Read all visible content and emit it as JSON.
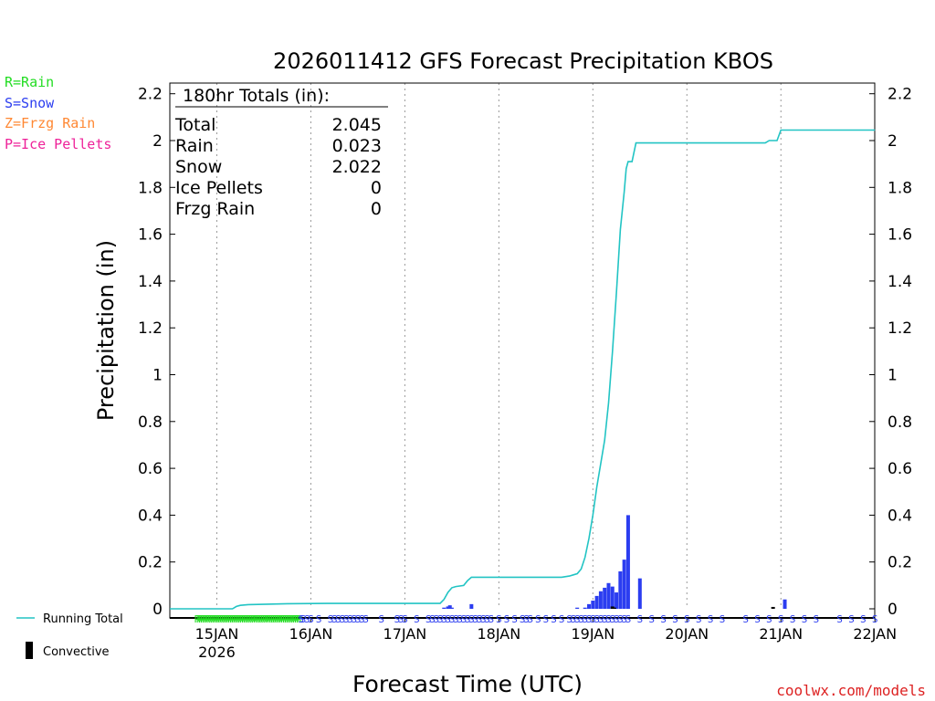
{
  "chart_data": {
    "type": "bar",
    "title": "2026011412 GFS Forecast Precipitation KBOS",
    "xlabel": "Forecast Time (UTC)",
    "ylabel": "Precipitation (in)",
    "ylim": [
      0,
      2.25
    ],
    "y_ticks": [
      0,
      0.2,
      0.4,
      0.6,
      0.8,
      1,
      1.2,
      1.4,
      1.6,
      1.8,
      2,
      2.2
    ],
    "y_tick_labels": [
      "0",
      "0.2",
      "0.4",
      "0.6",
      "0.8",
      "1",
      "1.2",
      "1.4",
      "1.6",
      "1.8",
      "2",
      "2.2"
    ],
    "x_unit": "forecast hour",
    "xlim": [
      0,
      180
    ],
    "x_ticks": [
      12,
      36,
      60,
      84,
      108,
      132,
      156,
      180
    ],
    "x_tick_labels": [
      "15JAN",
      "16JAN",
      "17JAN",
      "18JAN",
      "19JAN",
      "20JAN",
      "21JAN",
      "22JAN"
    ],
    "x_tick_sublabels": [
      "2026",
      "",
      "",
      "",
      "",
      "",
      "",
      ""
    ],
    "watermark": "coolwx.com/models",
    "legend_ptype": [
      {
        "code": "R",
        "label": "R=Rain",
        "color": "#22dd22"
      },
      {
        "code": "S",
        "label": "S=Snow",
        "color": "#2b3df0"
      },
      {
        "code": "Z",
        "label": "Z=Frzg Rain",
        "color": "#ff8833"
      },
      {
        "code": "P",
        "label": "P=Ice Pellets",
        "color": "#ee2299"
      }
    ],
    "legend_series": [
      {
        "label": "Running Total",
        "color": "#22c4c4"
      },
      {
        "label": "Convective",
        "color": "#000000"
      }
    ],
    "totals": {
      "header": "180hr Totals (in):",
      "rows": [
        {
          "label": "Total",
          "value": "2.045"
        },
        {
          "label": "Rain",
          "value": "0.023"
        },
        {
          "label": "Snow",
          "value": "2.022"
        },
        {
          "label": "Ice Pellets",
          "value": "0"
        },
        {
          "label": "Frzg Rain",
          "value": "0"
        }
      ]
    },
    "series": [
      {
        "name": "Precipitation (snow)",
        "type": "bar",
        "color": "#2b3df0",
        "x": [
          70,
          71,
          71.5,
          72,
          77,
          104,
          106,
          107,
          108,
          109,
          110,
          111,
          112,
          113,
          114,
          115,
          116,
          117,
          120,
          157
        ],
        "values": [
          0.005,
          0.01,
          0.015,
          0.005,
          0.02,
          0.005,
          0.005,
          0.02,
          0.035,
          0.055,
          0.075,
          0.09,
          0.11,
          0.095,
          0.07,
          0.16,
          0.21,
          0.4,
          0.13,
          0.04
        ]
      },
      {
        "name": "Convective",
        "type": "bar",
        "color": "#000000",
        "x": [
          113,
          113.5,
          154
        ],
        "values": [
          0.01,
          0.005,
          0.008
        ]
      },
      {
        "name": "Running Total",
        "type": "line",
        "color": "#22c4c4",
        "x": [
          0,
          16,
          17,
          18,
          20,
          25,
          30,
          40,
          60,
          69,
          70,
          71,
          72,
          73,
          75,
          76,
          77,
          80,
          90,
          100,
          102,
          103,
          104,
          105,
          106,
          107,
          108,
          109,
          110,
          111,
          112,
          113,
          114,
          115,
          116,
          116.5,
          117,
          117.5,
          118,
          119,
          120,
          130,
          140,
          152,
          153,
          155,
          156,
          157,
          180
        ],
        "values": [
          0,
          0,
          0.01,
          0.015,
          0.018,
          0.02,
          0.022,
          0.023,
          0.023,
          0.023,
          0.04,
          0.07,
          0.09,
          0.095,
          0.1,
          0.12,
          0.135,
          0.135,
          0.135,
          0.135,
          0.14,
          0.145,
          0.15,
          0.17,
          0.22,
          0.3,
          0.4,
          0.52,
          0.62,
          0.72,
          0.88,
          1.1,
          1.35,
          1.62,
          1.78,
          1.88,
          1.91,
          1.91,
          1.91,
          1.99,
          1.99,
          1.99,
          1.99,
          1.99,
          2.0,
          2.0,
          2.045,
          2.045,
          2.045
        ]
      }
    ],
    "ptype_strip": {
      "rain_glyph": "R",
      "snow_glyph": "S",
      "rain_hours": [
        7,
        7.5,
        8,
        8.5,
        9,
        9.5,
        10,
        10.5,
        11,
        11.5,
        12,
        12.5,
        13,
        13.5,
        14,
        14.5,
        15,
        15.5,
        16,
        16.5,
        17,
        17.5,
        18,
        18.5,
        19,
        19.5,
        20,
        20.5,
        21,
        21.5,
        22,
        22.5,
        23,
        23.5,
        24,
        24.5,
        25,
        25.5,
        26,
        26.5,
        27,
        27.5,
        28,
        28.5,
        29,
        29.5,
        30,
        30.5,
        31,
        31.5,
        32,
        32.5,
        33
      ],
      "snow_hours": [
        33.5,
        34,
        35,
        36,
        38,
        41,
        42,
        43,
        44,
        45,
        46,
        47,
        48,
        49,
        50,
        54,
        58,
        59,
        60,
        63,
        66,
        67,
        68,
        69,
        70,
        71,
        72,
        73,
        74,
        75,
        76,
        77,
        78,
        79,
        80,
        81,
        82,
        84,
        86,
        88,
        90,
        91,
        92,
        94,
        96,
        98,
        100,
        102,
        103,
        104,
        105,
        106,
        107,
        108,
        109,
        110,
        111,
        112,
        113,
        114,
        115,
        116,
        117,
        120,
        123,
        126,
        129,
        132,
        135,
        138,
        141,
        147,
        150,
        153,
        156,
        159,
        162,
        165,
        171,
        174,
        177,
        180
      ]
    }
  }
}
